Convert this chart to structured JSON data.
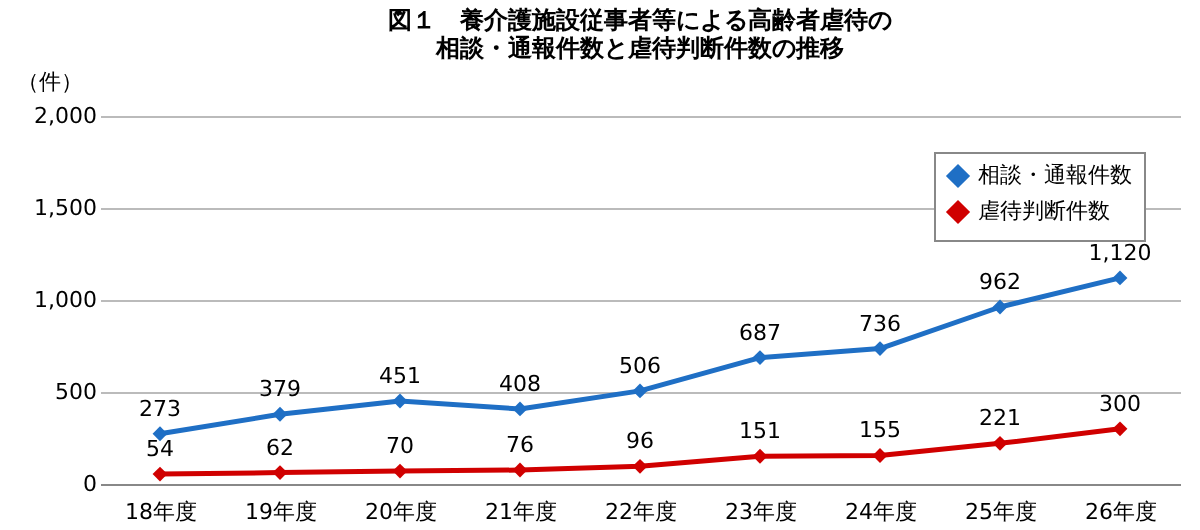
{
  "chart_data": {
    "type": "line",
    "title": [
      "図１　養介護施設従事者等による高齢者虐待の",
      "相談・通報件数と虐待判断件数の推移"
    ],
    "ylabel": "（件）",
    "categories": [
      "18年度",
      "19年度",
      "20年度",
      "21年度",
      "22年度",
      "23年度",
      "24年度",
      "25年度",
      "26年度"
    ],
    "series": [
      {
        "name": "相談・通報件数",
        "color": "#1f6fc5",
        "values": [
          273,
          379,
          451,
          408,
          506,
          687,
          736,
          962,
          1120
        ],
        "value_labels": [
          "273",
          "379",
          "451",
          "408",
          "506",
          "687",
          "736",
          "962",
          "1,120"
        ]
      },
      {
        "name": "虐待判断件数",
        "color": "#d00000",
        "values": [
          54,
          62,
          70,
          76,
          96,
          151,
          155,
          221,
          300
        ],
        "value_labels": [
          "54",
          "62",
          "70",
          "76",
          "96",
          "151",
          "155",
          "221",
          "300"
        ]
      }
    ],
    "ylim": [
      0,
      2000
    ],
    "yticks": [
      {
        "value": 0,
        "label": "0"
      },
      {
        "value": 500,
        "label": "500"
      },
      {
        "value": 1000,
        "label": "1,000"
      },
      {
        "value": 1500,
        "label": "1,500"
      },
      {
        "value": 2000,
        "label": "2,000"
      }
    ],
    "grid": "y",
    "legend": "top right",
    "marker": "diamond",
    "line_style": "solid"
  }
}
